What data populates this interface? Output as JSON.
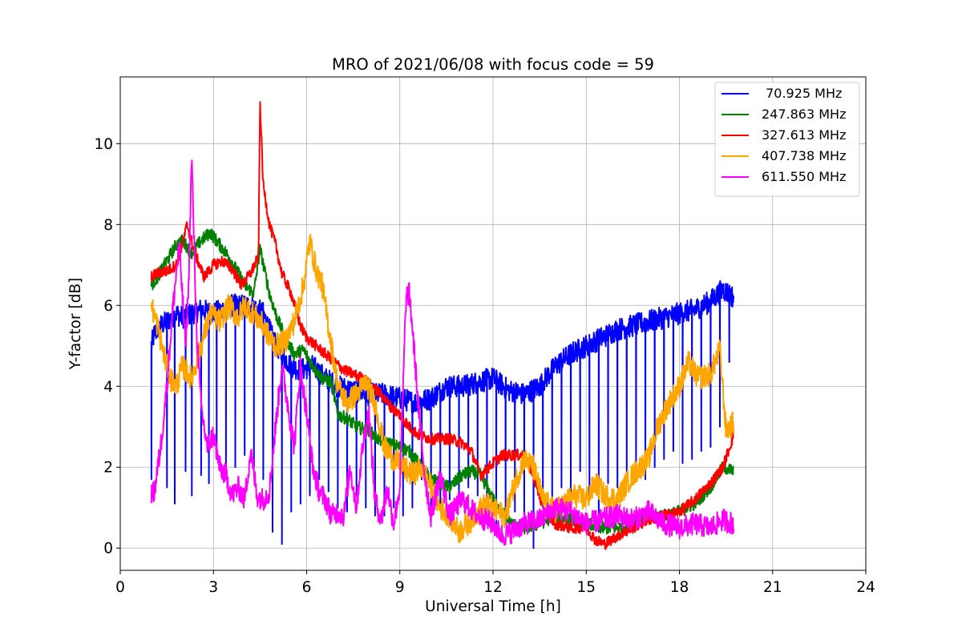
{
  "chart_data": {
    "type": "line",
    "title": "MRO of 2021/06/08 with focus code = 59",
    "xlabel": "Universal Time [h]",
    "ylabel": "Y-factor [dB]",
    "xlim": [
      0,
      24
    ],
    "ylim": [
      -0.55,
      11.65
    ],
    "xticks": [
      0,
      3,
      6,
      9,
      12,
      15,
      18,
      21,
      24
    ],
    "yticks": [
      0,
      2,
      4,
      6,
      8,
      10
    ],
    "grid": true,
    "legend_position": "top-right",
    "series": [
      {
        "name": " 70.925 MHz",
        "color": "#0000ff",
        "x": [
          1.0,
          1.1,
          1.3,
          1.5,
          1.8,
          2.0,
          2.3,
          2.6,
          3.0,
          3.3,
          3.6,
          3.9,
          4.2,
          4.6,
          4.9,
          5.2,
          5.5,
          5.8,
          6.2,
          6.6,
          7.0,
          7.5,
          8.0,
          8.5,
          9.0,
          9.5,
          10.0,
          10.5,
          11.0,
          11.5,
          12.0,
          12.5,
          13.0,
          13.5,
          14.0,
          14.5,
          15.0,
          15.5,
          16.0,
          16.5,
          17.0,
          17.5,
          18.0,
          18.5,
          19.0,
          19.4,
          19.75
        ],
        "y": [
          5.0,
          5.3,
          5.5,
          5.6,
          5.8,
          5.7,
          5.8,
          5.9,
          5.8,
          5.9,
          6.0,
          6.0,
          6.0,
          5.8,
          5.2,
          4.8,
          4.5,
          4.4,
          4.5,
          4.2,
          4.0,
          3.9,
          3.8,
          3.8,
          3.7,
          3.6,
          3.7,
          4.0,
          4.0,
          4.1,
          4.2,
          3.9,
          3.8,
          4.0,
          4.5,
          4.8,
          5.0,
          5.2,
          5.4,
          5.5,
          5.6,
          5.7,
          5.8,
          5.9,
          6.1,
          6.4,
          6.2
        ],
        "dips": [
          [
            1.0,
            1.7
          ],
          [
            1.5,
            1.5
          ],
          [
            1.75,
            1.1
          ],
          [
            2.1,
            1.9
          ],
          [
            2.3,
            1.3
          ],
          [
            2.6,
            1.8
          ],
          [
            2.85,
            1.6
          ],
          [
            3.1,
            2.2
          ],
          [
            3.4,
            1.9
          ],
          [
            3.7,
            2.0
          ],
          [
            4.0,
            2.3
          ],
          [
            4.3,
            2.0
          ],
          [
            4.6,
            1.7
          ],
          [
            4.9,
            0.4
          ],
          [
            5.2,
            0.1
          ],
          [
            5.5,
            0.9
          ],
          [
            5.8,
            1.1
          ],
          [
            6.1,
            1.3
          ],
          [
            6.4,
            1.7
          ],
          [
            6.7,
            1.4
          ],
          [
            7.0,
            1.0
          ],
          [
            7.3,
            0.9
          ],
          [
            7.6,
            1.3
          ],
          [
            7.9,
            1.0
          ],
          [
            8.2,
            0.8
          ],
          [
            8.5,
            0.8
          ],
          [
            8.8,
            1.0
          ],
          [
            9.1,
            0.8
          ],
          [
            9.4,
            1.0
          ],
          [
            9.7,
            1.7
          ],
          [
            10.0,
            0.8
          ],
          [
            10.3,
            1.0
          ],
          [
            10.6,
            1.2
          ],
          [
            10.9,
            1.3
          ],
          [
            11.2,
            1.5
          ],
          [
            11.5,
            1.3
          ],
          [
            11.8,
            0.9
          ],
          [
            12.1,
            0.6
          ],
          [
            12.4,
            0.6
          ],
          [
            12.7,
            0.9
          ],
          [
            13.0,
            0.5
          ],
          [
            13.3,
            0.0
          ],
          [
            13.6,
            1.0
          ],
          [
            13.9,
            0.8
          ],
          [
            14.2,
            1.5
          ],
          [
            14.5,
            1.2
          ],
          [
            14.8,
            1.9
          ],
          [
            15.1,
            1.2
          ],
          [
            15.4,
            0.4
          ],
          [
            15.7,
            1.6
          ],
          [
            16.0,
            1.5
          ],
          [
            16.3,
            1.8
          ],
          [
            16.6,
            1.9
          ],
          [
            16.9,
            1.7
          ],
          [
            17.2,
            2.0
          ],
          [
            17.5,
            2.2
          ],
          [
            17.8,
            2.4
          ],
          [
            18.1,
            2.1
          ],
          [
            18.4,
            2.2
          ],
          [
            18.7,
            2.4
          ],
          [
            19.0,
            2.5
          ],
          [
            19.3,
            3.0
          ],
          [
            19.6,
            4.6
          ]
        ]
      },
      {
        "name": "247.863 MHz",
        "color": "#008000",
        "x": [
          1.0,
          1.2,
          1.5,
          1.8,
          2.0,
          2.3,
          2.6,
          2.9,
          3.2,
          3.5,
          3.8,
          4.0,
          4.3,
          4.5,
          4.8,
          5.0,
          5.3,
          5.6,
          5.9,
          6.2,
          6.5,
          6.8,
          7.0,
          7.3,
          7.6,
          8.0,
          8.3,
          8.6,
          9.0,
          9.3,
          9.6,
          10.0,
          10.3,
          10.6,
          11.0,
          11.3,
          11.6,
          12.0,
          12.3,
          12.6,
          13.0,
          13.5,
          14.0,
          14.5,
          15.0,
          15.5,
          16.0,
          16.5,
          17.0,
          17.5,
          18.0,
          18.5,
          19.0,
          19.4,
          19.75
        ],
        "y": [
          6.5,
          6.7,
          7.1,
          7.5,
          7.6,
          7.3,
          7.6,
          7.8,
          7.5,
          7.2,
          6.8,
          6.5,
          6.3,
          7.4,
          6.3,
          5.8,
          5.2,
          4.8,
          4.9,
          4.5,
          4.2,
          4.1,
          3.3,
          3.2,
          3.0,
          2.9,
          2.7,
          2.6,
          2.5,
          2.4,
          2.1,
          1.7,
          1.6,
          1.5,
          1.8,
          1.9,
          1.8,
          1.2,
          0.9,
          0.6,
          0.5,
          0.6,
          0.8,
          0.7,
          0.6,
          0.5,
          0.5,
          0.6,
          0.8,
          0.8,
          0.9,
          1.1,
          1.5,
          2.0,
          1.9
        ]
      },
      {
        "name": "327.613 MHz",
        "color": "#ff0000",
        "x": [
          1.0,
          1.2,
          1.5,
          1.8,
          2.0,
          2.15,
          2.4,
          2.7,
          3.0,
          3.3,
          3.6,
          3.9,
          4.2,
          4.45,
          4.5,
          4.6,
          4.8,
          5.0,
          5.2,
          5.5,
          5.8,
          6.0,
          6.3,
          6.6,
          6.9,
          7.2,
          7.5,
          7.8,
          8.1,
          8.4,
          8.7,
          9.0,
          9.3,
          9.6,
          10.0,
          10.3,
          10.6,
          11.0,
          11.3,
          11.6,
          12.0,
          12.3,
          12.6,
          13.0,
          13.3,
          13.6,
          14.0,
          14.5,
          15.0,
          15.3,
          15.6,
          16.0,
          16.5,
          17.0,
          17.5,
          18.0,
          18.5,
          19.0,
          19.4,
          19.75
        ],
        "y": [
          6.7,
          6.8,
          6.85,
          7.0,
          7.5,
          8.0,
          7.3,
          6.7,
          7.0,
          7.1,
          6.9,
          6.5,
          6.8,
          7.2,
          11.1,
          9.0,
          8.0,
          7.5,
          6.8,
          6.3,
          5.5,
          5.2,
          5.0,
          4.8,
          4.6,
          4.4,
          4.3,
          4.2,
          4.0,
          3.8,
          3.5,
          3.3,
          3.0,
          2.8,
          2.7,
          2.7,
          2.7,
          2.6,
          2.4,
          1.8,
          2.1,
          2.3,
          2.3,
          2.3,
          1.8,
          1.0,
          0.6,
          0.5,
          0.5,
          0.2,
          0.1,
          0.3,
          0.5,
          0.7,
          0.8,
          0.9,
          1.2,
          1.6,
          2.0,
          2.8
        ]
      },
      {
        "name": "407.738 MHz",
        "color": "#ffa500",
        "x": [
          1.0,
          1.2,
          1.4,
          1.6,
          1.8,
          2.0,
          2.3,
          2.6,
          2.9,
          3.2,
          3.5,
          3.8,
          4.0,
          4.3,
          4.6,
          4.8,
          5.0,
          5.3,
          5.6,
          5.9,
          6.1,
          6.3,
          6.5,
          6.8,
          7.0,
          7.3,
          7.6,
          7.9,
          8.2,
          8.5,
          8.8,
          9.1,
          9.4,
          9.7,
          10.0,
          10.3,
          10.6,
          10.9,
          11.2,
          11.5,
          11.8,
          12.1,
          12.4,
          12.7,
          13.0,
          13.3,
          13.6,
          14.0,
          14.3,
          14.6,
          15.0,
          15.3,
          15.6,
          16.0,
          16.3,
          16.6,
          17.0,
          17.3,
          17.6,
          18.0,
          18.3,
          18.6,
          19.0,
          19.3,
          19.5,
          19.75
        ],
        "y": [
          6.0,
          5.5,
          4.8,
          4.2,
          4.0,
          4.5,
          4.2,
          5.0,
          5.8,
          5.6,
          6.0,
          5.7,
          6.0,
          5.8,
          5.5,
          5.2,
          5.0,
          5.1,
          5.6,
          6.5,
          7.6,
          6.9,
          6.5,
          5.0,
          4.0,
          3.6,
          3.8,
          4.1,
          3.6,
          2.5,
          2.2,
          2.0,
          1.8,
          2.0,
          1.5,
          1.0,
          0.8,
          0.4,
          0.6,
          0.9,
          1.1,
          0.9,
          0.8,
          1.6,
          2.2,
          2.0,
          1.2,
          0.9,
          1.1,
          1.3,
          1.2,
          1.6,
          1.3,
          1.2,
          1.6,
          1.9,
          2.2,
          3.0,
          3.5,
          4.0,
          4.6,
          4.2,
          4.3,
          4.9,
          2.9,
          3.1
        ]
      },
      {
        "name": "611.550 MHz",
        "color": "#ff00ff",
        "x": [
          1.0,
          1.1,
          1.3,
          1.5,
          1.7,
          1.9,
          2.1,
          2.2,
          2.3,
          2.45,
          2.6,
          2.8,
          3.0,
          3.2,
          3.4,
          3.6,
          3.8,
          4.0,
          4.2,
          4.4,
          4.6,
          4.8,
          5.0,
          5.2,
          5.4,
          5.6,
          5.8,
          6.0,
          6.2,
          6.4,
          6.6,
          6.8,
          7.0,
          7.2,
          7.4,
          7.6,
          7.8,
          8.0,
          8.2,
          8.4,
          8.6,
          8.8,
          9.0,
          9.2,
          9.3,
          9.4,
          9.6,
          9.8,
          10.0,
          10.3,
          10.6,
          11.0,
          11.5,
          12.0,
          12.3,
          12.6,
          13.0,
          13.5,
          14.0,
          14.5,
          15.0,
          15.5,
          16.0,
          16.5,
          17.0,
          17.5,
          18.0,
          18.5,
          19.0,
          19.4,
          19.75
        ],
        "y": [
          1.3,
          1.4,
          2.5,
          4.0,
          6.0,
          7.5,
          5.0,
          6.5,
          9.7,
          5.5,
          3.5,
          2.5,
          2.8,
          2.0,
          1.8,
          1.3,
          1.5,
          1.2,
          2.4,
          1.3,
          1.2,
          1.4,
          3.0,
          4.5,
          3.5,
          2.5,
          4.5,
          3.3,
          2.0,
          1.4,
          1.2,
          0.8,
          0.9,
          0.8,
          2.0,
          1.0,
          2.5,
          3.4,
          1.2,
          0.7,
          1.5,
          0.6,
          1.5,
          6.2,
          6.3,
          5.5,
          3.5,
          1.8,
          0.8,
          1.8,
          0.8,
          1.2,
          0.8,
          0.6,
          0.3,
          0.4,
          0.6,
          0.7,
          1.0,
          0.9,
          0.6,
          0.7,
          0.8,
          0.7,
          0.9,
          0.6,
          0.5,
          0.6,
          0.5,
          0.7,
          0.6
        ]
      }
    ]
  }
}
